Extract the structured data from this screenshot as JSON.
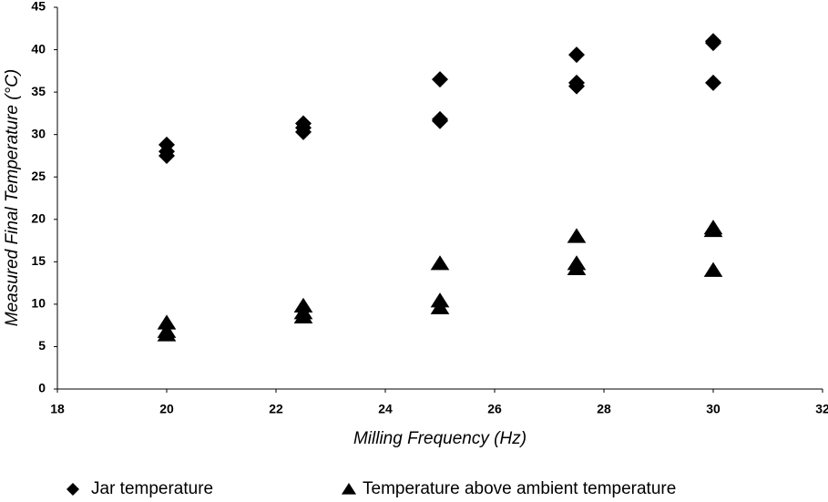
{
  "chart_data": {
    "type": "scatter",
    "xlabel": "Milling Frequency (Hz)",
    "ylabel": "Measured Final Temperature (°C)",
    "xlim": [
      18,
      32
    ],
    "xticks": [
      18,
      20,
      22,
      24,
      26,
      28,
      30,
      32
    ],
    "ylim": [
      0,
      45
    ],
    "yticks": [
      0,
      5,
      10,
      15,
      20,
      25,
      30,
      35,
      40,
      45
    ],
    "legend": "bottom",
    "series": [
      {
        "name": "Jar temperature",
        "color": "#000000",
        "marker": "diamond",
        "x": [
          20,
          20,
          20,
          22.5,
          22.5,
          22.5,
          25,
          25,
          25,
          27.5,
          27.5,
          27.5,
          30,
          30,
          30
        ],
        "values": [
          28.8,
          28.0,
          27.5,
          31.3,
          30.8,
          30.3,
          36.5,
          31.8,
          31.6,
          39.4,
          36.1,
          35.7,
          41.0,
          40.8,
          36.1
        ]
      },
      {
        "name": "Temperature above ambient temperature",
        "color": "#000000",
        "marker": "triangle",
        "x": [
          20,
          20,
          20,
          22.5,
          22.5,
          22.5,
          25,
          25,
          25,
          27.5,
          27.5,
          27.5,
          30,
          30,
          30
        ],
        "values": [
          7.8,
          6.8,
          6.4,
          9.8,
          9.0,
          8.5,
          14.8,
          10.4,
          9.6,
          18.0,
          14.8,
          14.2,
          19.0,
          18.7,
          14.0
        ]
      }
    ]
  }
}
